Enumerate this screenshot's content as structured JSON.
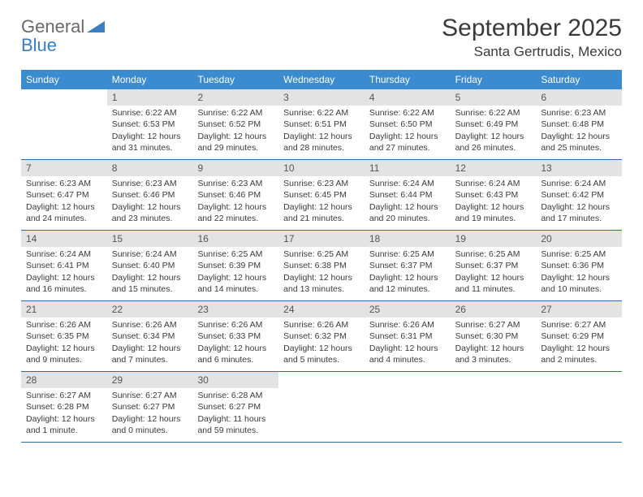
{
  "logo": {
    "general": "General",
    "blue": "Blue"
  },
  "title": "September 2025",
  "location": "Santa Gertrudis, Mexico",
  "colors": {
    "header_bg": "#3a8bd0",
    "header_text": "#ffffff",
    "daynum_bg": "#e3e3e3",
    "week_border": "#2e6aa8",
    "text": "#3a3a3a",
    "logo_blue": "#3a7fc4",
    "logo_gray": "#6a6a6a"
  },
  "weekdays": [
    "Sunday",
    "Monday",
    "Tuesday",
    "Wednesday",
    "Thursday",
    "Friday",
    "Saturday"
  ],
  "weeks": [
    [
      {
        "n": "",
        "sr": "",
        "ss": "",
        "dl": ""
      },
      {
        "n": "1",
        "sr": "Sunrise: 6:22 AM",
        "ss": "Sunset: 6:53 PM",
        "dl": "Daylight: 12 hours and 31 minutes."
      },
      {
        "n": "2",
        "sr": "Sunrise: 6:22 AM",
        "ss": "Sunset: 6:52 PM",
        "dl": "Daylight: 12 hours and 29 minutes."
      },
      {
        "n": "3",
        "sr": "Sunrise: 6:22 AM",
        "ss": "Sunset: 6:51 PM",
        "dl": "Daylight: 12 hours and 28 minutes."
      },
      {
        "n": "4",
        "sr": "Sunrise: 6:22 AM",
        "ss": "Sunset: 6:50 PM",
        "dl": "Daylight: 12 hours and 27 minutes."
      },
      {
        "n": "5",
        "sr": "Sunrise: 6:22 AM",
        "ss": "Sunset: 6:49 PM",
        "dl": "Daylight: 12 hours and 26 minutes."
      },
      {
        "n": "6",
        "sr": "Sunrise: 6:23 AM",
        "ss": "Sunset: 6:48 PM",
        "dl": "Daylight: 12 hours and 25 minutes."
      }
    ],
    [
      {
        "n": "7",
        "sr": "Sunrise: 6:23 AM",
        "ss": "Sunset: 6:47 PM",
        "dl": "Daylight: 12 hours and 24 minutes."
      },
      {
        "n": "8",
        "sr": "Sunrise: 6:23 AM",
        "ss": "Sunset: 6:46 PM",
        "dl": "Daylight: 12 hours and 23 minutes."
      },
      {
        "n": "9",
        "sr": "Sunrise: 6:23 AM",
        "ss": "Sunset: 6:46 PM",
        "dl": "Daylight: 12 hours and 22 minutes."
      },
      {
        "n": "10",
        "sr": "Sunrise: 6:23 AM",
        "ss": "Sunset: 6:45 PM",
        "dl": "Daylight: 12 hours and 21 minutes."
      },
      {
        "n": "11",
        "sr": "Sunrise: 6:24 AM",
        "ss": "Sunset: 6:44 PM",
        "dl": "Daylight: 12 hours and 20 minutes."
      },
      {
        "n": "12",
        "sr": "Sunrise: 6:24 AM",
        "ss": "Sunset: 6:43 PM",
        "dl": "Daylight: 12 hours and 19 minutes."
      },
      {
        "n": "13",
        "sr": "Sunrise: 6:24 AM",
        "ss": "Sunset: 6:42 PM",
        "dl": "Daylight: 12 hours and 17 minutes."
      }
    ],
    [
      {
        "n": "14",
        "sr": "Sunrise: 6:24 AM",
        "ss": "Sunset: 6:41 PM",
        "dl": "Daylight: 12 hours and 16 minutes."
      },
      {
        "n": "15",
        "sr": "Sunrise: 6:24 AM",
        "ss": "Sunset: 6:40 PM",
        "dl": "Daylight: 12 hours and 15 minutes."
      },
      {
        "n": "16",
        "sr": "Sunrise: 6:25 AM",
        "ss": "Sunset: 6:39 PM",
        "dl": "Daylight: 12 hours and 14 minutes."
      },
      {
        "n": "17",
        "sr": "Sunrise: 6:25 AM",
        "ss": "Sunset: 6:38 PM",
        "dl": "Daylight: 12 hours and 13 minutes."
      },
      {
        "n": "18",
        "sr": "Sunrise: 6:25 AM",
        "ss": "Sunset: 6:37 PM",
        "dl": "Daylight: 12 hours and 12 minutes."
      },
      {
        "n": "19",
        "sr": "Sunrise: 6:25 AM",
        "ss": "Sunset: 6:37 PM",
        "dl": "Daylight: 12 hours and 11 minutes."
      },
      {
        "n": "20",
        "sr": "Sunrise: 6:25 AM",
        "ss": "Sunset: 6:36 PM",
        "dl": "Daylight: 12 hours and 10 minutes."
      }
    ],
    [
      {
        "n": "21",
        "sr": "Sunrise: 6:26 AM",
        "ss": "Sunset: 6:35 PM",
        "dl": "Daylight: 12 hours and 9 minutes."
      },
      {
        "n": "22",
        "sr": "Sunrise: 6:26 AM",
        "ss": "Sunset: 6:34 PM",
        "dl": "Daylight: 12 hours and 7 minutes."
      },
      {
        "n": "23",
        "sr": "Sunrise: 6:26 AM",
        "ss": "Sunset: 6:33 PM",
        "dl": "Daylight: 12 hours and 6 minutes."
      },
      {
        "n": "24",
        "sr": "Sunrise: 6:26 AM",
        "ss": "Sunset: 6:32 PM",
        "dl": "Daylight: 12 hours and 5 minutes."
      },
      {
        "n": "25",
        "sr": "Sunrise: 6:26 AM",
        "ss": "Sunset: 6:31 PM",
        "dl": "Daylight: 12 hours and 4 minutes."
      },
      {
        "n": "26",
        "sr": "Sunrise: 6:27 AM",
        "ss": "Sunset: 6:30 PM",
        "dl": "Daylight: 12 hours and 3 minutes."
      },
      {
        "n": "27",
        "sr": "Sunrise: 6:27 AM",
        "ss": "Sunset: 6:29 PM",
        "dl": "Daylight: 12 hours and 2 minutes."
      }
    ],
    [
      {
        "n": "28",
        "sr": "Sunrise: 6:27 AM",
        "ss": "Sunset: 6:28 PM",
        "dl": "Daylight: 12 hours and 1 minute."
      },
      {
        "n": "29",
        "sr": "Sunrise: 6:27 AM",
        "ss": "Sunset: 6:27 PM",
        "dl": "Daylight: 12 hours and 0 minutes."
      },
      {
        "n": "30",
        "sr": "Sunrise: 6:28 AM",
        "ss": "Sunset: 6:27 PM",
        "dl": "Daylight: 11 hours and 59 minutes."
      },
      {
        "n": "",
        "sr": "",
        "ss": "",
        "dl": ""
      },
      {
        "n": "",
        "sr": "",
        "ss": "",
        "dl": ""
      },
      {
        "n": "",
        "sr": "",
        "ss": "",
        "dl": ""
      },
      {
        "n": "",
        "sr": "",
        "ss": "",
        "dl": ""
      }
    ]
  ]
}
